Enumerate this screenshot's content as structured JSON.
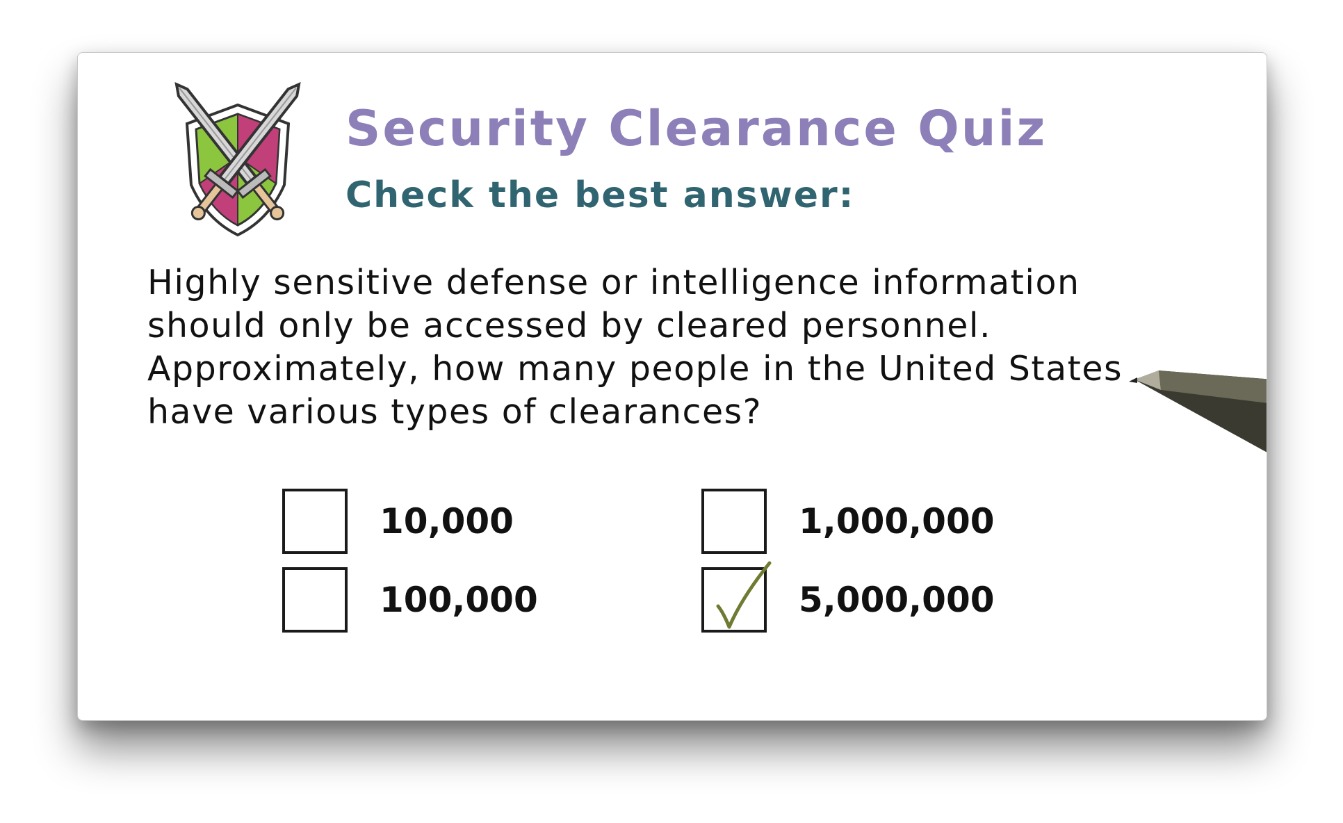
{
  "quiz": {
    "title": "Security Clearance Quiz",
    "instruction": "Check the best answer:",
    "question": "Highly sensitive defense or intelligence information should only be accessed by cleared personnel. Approximately, how many people in the United States have various types of clearances?",
    "options": [
      {
        "label": "10,000",
        "checked": false
      },
      {
        "label": "100,000",
        "checked": false
      },
      {
        "label": "1,000,000",
        "checked": false
      },
      {
        "label": "5,000,000",
        "checked": true
      }
    ]
  },
  "icons": {
    "logo": "crossed-swords-shield-icon",
    "check": "checkmark-icon",
    "pen": "pen-icon"
  },
  "colors": {
    "title": "#8d7fb8",
    "instruction": "#2f6470",
    "text": "#111111",
    "checkmark": "#6f7a32",
    "shield_green": "#8cc63f",
    "shield_pink": "#c2407a"
  }
}
